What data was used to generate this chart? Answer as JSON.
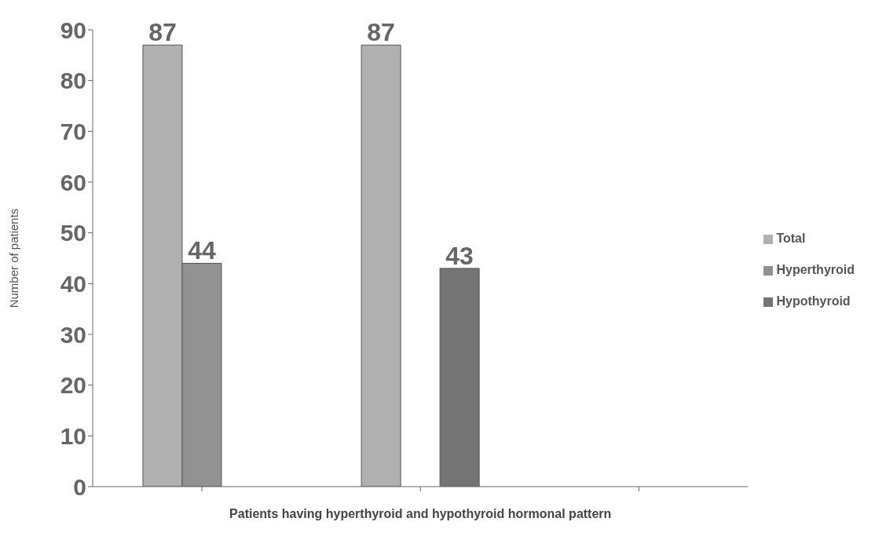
{
  "chart_data": {
    "type": "bar",
    "xlabel": "Patients having hyperthyroid and hypothyroid hormonal pattern",
    "ylabel": "Number of patients",
    "categories": [
      null,
      null,
      null
    ],
    "series": [
      {
        "name": "Total",
        "color": "#b0b0b0",
        "values": [
          87,
          87,
          null
        ]
      },
      {
        "name": "Hyperthyroid",
        "color": "#929292",
        "values": [
          44,
          null,
          null
        ]
      },
      {
        "name": "Hypothyroid",
        "color": "#747474",
        "values": [
          null,
          43,
          null
        ]
      }
    ],
    "ylim": [
      0,
      90
    ],
    "yticks": [
      0,
      10,
      20,
      30,
      40,
      50,
      60,
      70,
      80,
      90
    ],
    "data_labels": true,
    "legend": "right",
    "grid": false
  }
}
